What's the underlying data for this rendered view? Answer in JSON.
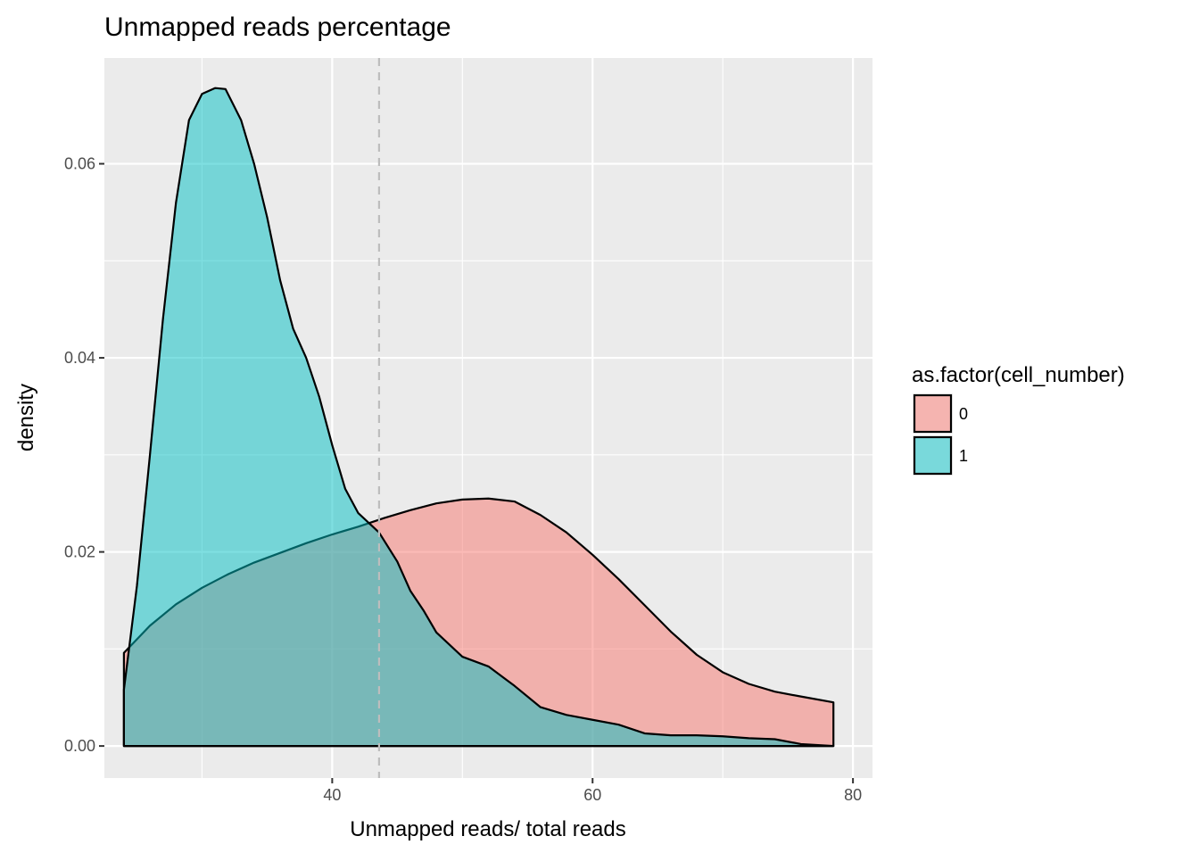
{
  "chart_data": {
    "type": "area",
    "title": "Unmapped reads percentage",
    "xlabel": "Unmapped reads/ total reads",
    "ylabel": "density",
    "xlim": [
      22.5,
      81.5
    ],
    "ylim": [
      -0.0033,
      0.0709
    ],
    "x_ticks": [
      40,
      60,
      80
    ],
    "x_tick_labels": [
      "40",
      "60",
      "80"
    ],
    "x_minor_breaks": [
      30,
      50,
      70
    ],
    "y_ticks": [
      0.0,
      0.02,
      0.04,
      0.06
    ],
    "y_tick_labels": [
      "0.00",
      "0.02",
      "0.04",
      "0.06"
    ],
    "y_minor_breaks": [
      0.01,
      0.03,
      0.05
    ],
    "grid": true,
    "background": "#ebebeb",
    "legend": {
      "title": "as.factor(cell_number)",
      "position": "right"
    },
    "vline": {
      "x": 43.6,
      "style": "dashed",
      "color": "#bdbdbd"
    },
    "series": [
      {
        "name": "0",
        "color": "#f8766d",
        "fill_opacity": 0.5,
        "x": [
          24.0,
          26.0,
          28.0,
          30.0,
          32.0,
          34.0,
          36.0,
          38.0,
          40.0,
          42.0,
          44.0,
          46.0,
          48.0,
          50.0,
          52.0,
          54.0,
          56.0,
          58.0,
          60.0,
          62.0,
          64.0,
          66.0,
          68.0,
          70.0,
          72.0,
          74.0,
          76.0,
          78.5
        ],
        "y": [
          0.0096,
          0.0124,
          0.0146,
          0.0163,
          0.0177,
          0.0189,
          0.0199,
          0.0209,
          0.0218,
          0.0226,
          0.0235,
          0.0243,
          0.025,
          0.0254,
          0.0255,
          0.0252,
          0.0238,
          0.022,
          0.0197,
          0.0172,
          0.0145,
          0.0118,
          0.0094,
          0.0076,
          0.0064,
          0.0056,
          0.0051,
          0.0045
        ]
      },
      {
        "name": "1",
        "color": "#00bfc4",
        "fill_opacity": 0.5,
        "x": [
          24.0,
          25.0,
          26.0,
          27.0,
          28.0,
          29.0,
          30.0,
          31.0,
          31.8,
          33.0,
          34.0,
          35.0,
          36.0,
          37.0,
          38.0,
          39.0,
          40.0,
          41.0,
          42.0,
          43.6,
          45.0,
          46.0,
          47.0,
          48.0,
          50.0,
          52.0,
          54.0,
          56.0,
          58.0,
          60.0,
          62.0,
          64.0,
          66.0,
          68.0,
          70.0,
          72.0,
          74.0,
          76.0,
          78.5
        ],
        "y": [
          0.0058,
          0.0165,
          0.03,
          0.044,
          0.056,
          0.0645,
          0.0672,
          0.0678,
          0.0677,
          0.0645,
          0.06,
          0.0545,
          0.048,
          0.043,
          0.04,
          0.036,
          0.031,
          0.0265,
          0.024,
          0.022,
          0.019,
          0.016,
          0.014,
          0.0117,
          0.0092,
          0.0082,
          0.0062,
          0.004,
          0.0032,
          0.0027,
          0.0022,
          0.0013,
          0.0011,
          0.0011,
          0.001,
          0.0008,
          0.0007,
          0.0002,
          0.0
        ]
      }
    ]
  }
}
